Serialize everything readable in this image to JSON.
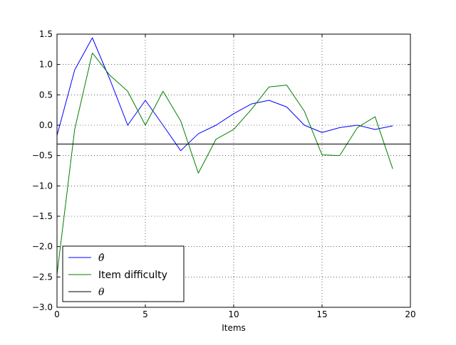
{
  "chart_data": {
    "type": "line",
    "title": "",
    "xlabel": "Items",
    "ylabel": "",
    "xlim": [
      0,
      20
    ],
    "ylim": [
      -3.0,
      1.5
    ],
    "xticks": [
      0,
      5,
      10,
      15,
      20
    ],
    "xtick_labels": [
      "0",
      "5",
      "10",
      "15",
      "20"
    ],
    "yticks": [
      -3.0,
      -2.5,
      -2.0,
      -1.5,
      -1.0,
      -0.5,
      0.0,
      0.5,
      1.0,
      1.5
    ],
    "ytick_labels": [
      "−3.0",
      "−2.5",
      "−2.0",
      "−1.5",
      "−1.0",
      "−0.5",
      "0.0",
      "0.5",
      "1.0",
      "1.5"
    ],
    "grid": true,
    "legend_position": "lower-left",
    "x": [
      0,
      1,
      2,
      3,
      4,
      5,
      6,
      7,
      8,
      9,
      10,
      11,
      12,
      13,
      14,
      15,
      16,
      17,
      18,
      19
    ],
    "series": [
      {
        "name": "θ̂",
        "color": "#0000ff",
        "values": [
          -0.17,
          0.91,
          1.44,
          0.75,
          0.0,
          0.41,
          0.0,
          -0.42,
          -0.14,
          0.0,
          0.19,
          0.35,
          0.41,
          0.3,
          0.0,
          -0.12,
          -0.04,
          0.0,
          -0.07,
          -0.01
        ]
      },
      {
        "name": "Item difficulty",
        "color": "#008000",
        "values": [
          -2.46,
          -0.07,
          1.19,
          0.82,
          0.56,
          0.0,
          0.56,
          0.07,
          -0.79,
          -0.23,
          -0.07,
          0.26,
          0.63,
          0.66,
          0.23,
          -0.49,
          -0.5,
          -0.04,
          0.14,
          -0.72
        ]
      },
      {
        "name": "θ",
        "color": "#000000",
        "constant": -0.31
      }
    ]
  }
}
